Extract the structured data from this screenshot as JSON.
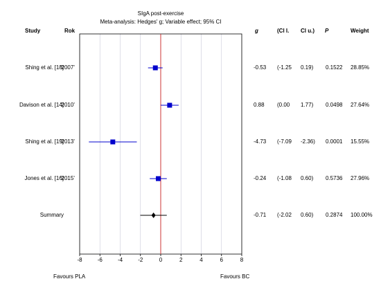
{
  "title": "SIgA post-exercise",
  "subtitle": "Meta-analysis: Hedges' g; Variable effect; 95% CI",
  "headers": {
    "study": "Study",
    "year": "Rok",
    "g": "g",
    "ci_low": "(Cl l.",
    "ci_up": "Cl u.)",
    "p": "P",
    "weight": "Weight"
  },
  "rows": [
    {
      "study": "Shing et al. [18]",
      "year": "'2007'",
      "g": "-0.53",
      "ci_low": "(-1.25",
      "ci_up": "0.19)",
      "p": "0.1522",
      "weight": "28.85%"
    },
    {
      "study": "Davison et al. [14]",
      "year": "'2010'",
      "g": "0.88",
      "ci_low": "(0.00",
      "ci_up": "1.77)",
      "p": "0.0498",
      "weight": "27.64%"
    },
    {
      "study": "Shing et al. [19]",
      "year": "'2013'",
      "g": "-4.73",
      "ci_low": "(-7.09",
      "ci_up": "-2.36)",
      "p": "0.0001",
      "weight": "15.55%"
    },
    {
      "study": "Jones et al. [16]",
      "year": "'2015'",
      "g": "-0.24",
      "ci_low": "(-1.08",
      "ci_up": "0.60)",
      "p": "0.5736",
      "weight": "27.96%"
    },
    {
      "study": "Summary",
      "year": "",
      "g": "-0.71",
      "ci_low": "(-2.02",
      "ci_up": "0.60)",
      "p": "0.2874",
      "weight": "100.00%"
    }
  ],
  "footer": {
    "left": "Favours PLA",
    "right": "Favours BC"
  },
  "colors": {
    "marker": "#0000cc",
    "summary": "#000000",
    "zero_line": "#cc3333",
    "grid": "#c8c8d8"
  },
  "chart_data": {
    "type": "forest",
    "title": "SIgA post-exercise",
    "subtitle": "Meta-analysis: Hedges' g; Variable effect; 95% CI",
    "xlim": [
      -8,
      8
    ],
    "xticks": [
      "-8",
      "-6",
      "-4",
      "-2",
      "0",
      "2",
      "4",
      "6",
      "8"
    ],
    "reference_line": 0,
    "grid": true,
    "studies": [
      {
        "name": "Shing et al. [18]",
        "g": -0.53,
        "lo": -1.25,
        "hi": 0.19,
        "weight": 28.85
      },
      {
        "name": "Davison et al. [14]",
        "g": 0.88,
        "lo": 0.0,
        "hi": 1.77,
        "weight": 27.64
      },
      {
        "name": "Shing et al. [19]",
        "g": -4.73,
        "lo": -7.09,
        "hi": -2.36,
        "weight": 15.55
      },
      {
        "name": "Jones et al. [16]",
        "g": -0.24,
        "lo": -1.08,
        "hi": 0.6,
        "weight": 27.96
      }
    ],
    "summary": {
      "name": "Summary",
      "g": -0.71,
      "lo": -2.02,
      "hi": 0.6,
      "weight": 100.0
    }
  }
}
